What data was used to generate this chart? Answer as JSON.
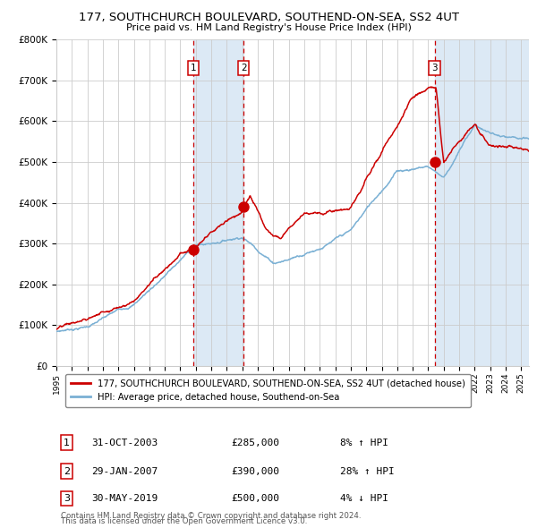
{
  "title": "177, SOUTHCHURCH BOULEVARD, SOUTHEND-ON-SEA, SS2 4UT",
  "subtitle": "Price paid vs. HM Land Registry's House Price Index (HPI)",
  "ylim": [
    0,
    800000
  ],
  "yticks": [
    0,
    100000,
    200000,
    300000,
    400000,
    500000,
    600000,
    700000,
    800000
  ],
  "ytick_labels": [
    "£0",
    "£100K",
    "£200K",
    "£300K",
    "£400K",
    "£500K",
    "£600K",
    "£700K",
    "£800K"
  ],
  "red_line_color": "#cc0000",
  "blue_line_color": "#7ab0d4",
  "grid_color": "#cccccc",
  "bg_color": "#ffffff",
  "shade_color": "#dce9f5",
  "dashed_color": "#cc0000",
  "transactions": [
    {
      "label": "1",
      "date_num": 2003.83,
      "price": 285000
    },
    {
      "label": "2",
      "date_num": 2007.08,
      "price": 390000
    },
    {
      "label": "3",
      "date_num": 2019.41,
      "price": 500000
    }
  ],
  "sale_labels": [
    {
      "label": "1",
      "date": "31-OCT-2003",
      "price": "£285,000",
      "hpi": "8% ↑ HPI"
    },
    {
      "label": "2",
      "date": "29-JAN-2007",
      "price": "£390,000",
      "hpi": "28% ↑ HPI"
    },
    {
      "label": "3",
      "date": "30-MAY-2019",
      "price": "£500,000",
      "hpi": "4% ↓ HPI"
    }
  ],
  "legend_line1": "177, SOUTHCHURCH BOULEVARD, SOUTHEND-ON-SEA, SS2 4UT (detached house)",
  "legend_line2": "HPI: Average price, detached house, Southend-on-Sea",
  "footnote1": "Contains HM Land Registry data © Crown copyright and database right 2024.",
  "footnote2": "This data is licensed under the Open Government Licence v3.0.",
  "xmin": 1995.0,
  "xmax": 2025.5
}
